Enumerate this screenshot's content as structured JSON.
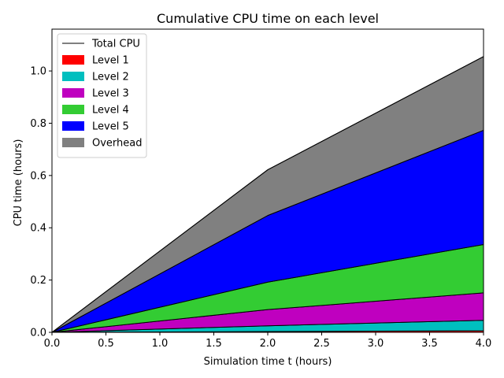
{
  "chart_data": {
    "type": "area",
    "stacked": true,
    "title": "Cumulative CPU time on each level",
    "xlabel": "Simulation time t (hours)",
    "ylabel": "CPU time (hours)",
    "xlim": [
      0.0,
      4.0
    ],
    "ylim": [
      0.0,
      1.16
    ],
    "xticks": [
      0.0,
      0.5,
      1.0,
      1.5,
      2.0,
      2.5,
      3.0,
      3.5,
      4.0
    ],
    "yticks": [
      0.0,
      0.2,
      0.4,
      0.6,
      0.8,
      1.0
    ],
    "xtick_labels": [
      "0.0",
      "0.5",
      "1.0",
      "1.5",
      "2.0",
      "2.5",
      "3.0",
      "3.5",
      "4.0"
    ],
    "ytick_labels": [
      "0.0",
      "0.2",
      "0.4",
      "0.6",
      "0.8",
      "1.0"
    ],
    "x": [
      0.0,
      2.0,
      4.0
    ],
    "series": [
      {
        "name": "Level 1",
        "color": "#ff0000",
        "values": [
          0.0,
          0.003,
          0.006
        ]
      },
      {
        "name": "Level 2",
        "color": "#00bfbf",
        "values": [
          0.0,
          0.022,
          0.04
        ]
      },
      {
        "name": "Level 3",
        "color": "#bf00bf",
        "values": [
          0.0,
          0.062,
          0.105
        ]
      },
      {
        "name": "Level 4",
        "color": "#33cc33",
        "values": [
          0.0,
          0.105,
          0.185
        ]
      },
      {
        "name": "Level 5",
        "color": "#0000ff",
        "values": [
          0.0,
          0.255,
          0.437
        ]
      },
      {
        "name": "Overhead",
        "color": "#808080",
        "values": [
          0.0,
          0.175,
          0.282
        ]
      }
    ],
    "total": {
      "name": "Total CPU",
      "color": "#000000",
      "values": [
        0.0,
        0.622,
        1.055
      ]
    },
    "legend_order": [
      "Total CPU",
      "Level 1",
      "Level 2",
      "Level 3",
      "Level 4",
      "Level 5",
      "Overhead"
    ],
    "legend_position": "upper-left",
    "grid": false
  }
}
